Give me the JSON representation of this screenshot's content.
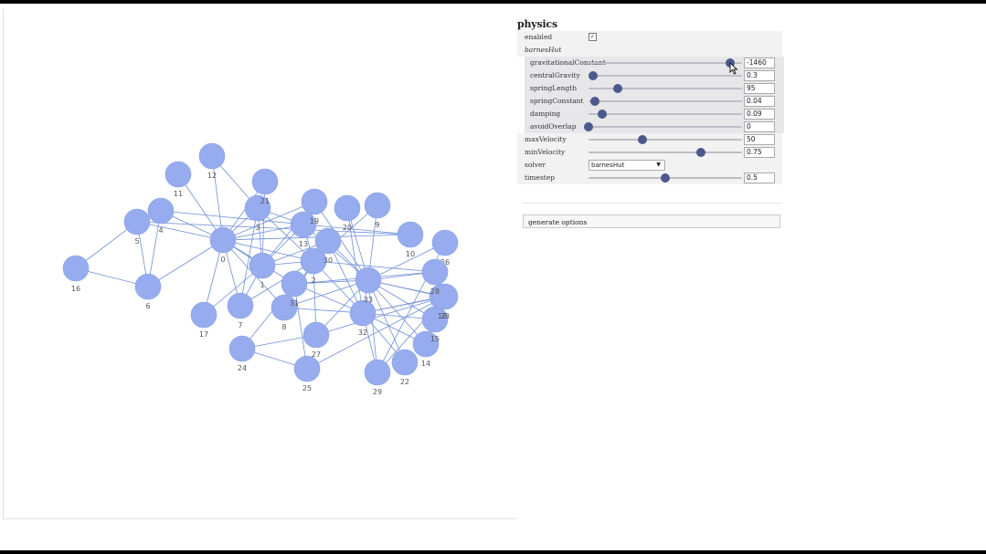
{
  "config": {
    "section_title": "physics",
    "enabled_label": "enabled",
    "enabled_checked": true,
    "solver_group_label": "barnesHut",
    "barnes_hut": [
      {
        "label": "gravitationalConstant",
        "value": "-1460",
        "fraction": 0.92
      },
      {
        "label": "centralGravity",
        "value": "0.3",
        "fraction": 0.03
      },
      {
        "label": "springLength",
        "value": "95",
        "fraction": 0.19
      },
      {
        "label": "springConstant",
        "value": "0.04",
        "fraction": 0.04
      },
      {
        "label": "damping",
        "value": "0.09",
        "fraction": 0.09
      },
      {
        "label": "avoidOverlap",
        "value": "0",
        "fraction": 0.0
      }
    ],
    "max_velocity": {
      "label": "maxVelocity",
      "value": "50",
      "fraction": 0.35
    },
    "min_velocity": {
      "label": "minVelocity",
      "value": "0.75",
      "fraction": 0.73
    },
    "solver": {
      "label": "solver",
      "selected": "barnesHut"
    },
    "timestep": {
      "label": "timestep",
      "value": "0.5",
      "fraction": 0.5
    },
    "generate_button": "generate options"
  },
  "network": {
    "node_color": "#97acee",
    "edge_color": "#6f8fd8",
    "nodes": [
      {
        "id": "0",
        "label": "0"
      },
      {
        "id": "1",
        "label": "1"
      },
      {
        "id": "2",
        "label": "2"
      },
      {
        "id": "3",
        "label": "3"
      },
      {
        "id": "4",
        "label": "4"
      },
      {
        "id": "5",
        "label": "5"
      },
      {
        "id": "6",
        "label": "6"
      },
      {
        "id": "7",
        "label": "7"
      },
      {
        "id": "8",
        "label": "8"
      },
      {
        "id": "9",
        "label": "9"
      },
      {
        "id": "10",
        "label": "10"
      },
      {
        "id": "11",
        "label": "11"
      },
      {
        "id": "12",
        "label": "12"
      },
      {
        "id": "13",
        "label": "13"
      },
      {
        "id": "14",
        "label": "14"
      },
      {
        "id": "15",
        "label": "15"
      },
      {
        "id": "16",
        "label": "16"
      },
      {
        "id": "17",
        "label": "17"
      },
      {
        "id": "18",
        "label": "18"
      },
      {
        "id": "19",
        "label": "19"
      },
      {
        "id": "20",
        "label": "20"
      },
      {
        "id": "21",
        "label": "21"
      },
      {
        "id": "22",
        "label": "22"
      },
      {
        "id": "23",
        "label": "23"
      },
      {
        "id": "24",
        "label": "24"
      },
      {
        "id": "25",
        "label": "25"
      },
      {
        "id": "26",
        "label": "26"
      },
      {
        "id": "27",
        "label": "27"
      },
      {
        "id": "28",
        "label": "28"
      },
      {
        "id": "29",
        "label": "29"
      },
      {
        "id": "30",
        "label": "30"
      },
      {
        "id": "31",
        "label": "31"
      },
      {
        "id": "32",
        "label": "32"
      },
      {
        "id": "33",
        "label": "33"
      }
    ],
    "edges": [
      [
        "0",
        "1"
      ],
      [
        "0",
        "2"
      ],
      [
        "0",
        "3"
      ],
      [
        "0",
        "4"
      ],
      [
        "0",
        "5"
      ],
      [
        "0",
        "6"
      ],
      [
        "0",
        "7"
      ],
      [
        "0",
        "8"
      ],
      [
        "0",
        "10"
      ],
      [
        "0",
        "11"
      ],
      [
        "0",
        "12"
      ],
      [
        "0",
        "13"
      ],
      [
        "0",
        "17"
      ],
      [
        "0",
        "19"
      ],
      [
        "0",
        "21"
      ],
      [
        "0",
        "31"
      ],
      [
        "1",
        "2"
      ],
      [
        "1",
        "3"
      ],
      [
        "1",
        "7"
      ],
      [
        "1",
        "13"
      ],
      [
        "1",
        "17"
      ],
      [
        "1",
        "19"
      ],
      [
        "1",
        "21"
      ],
      [
        "1",
        "30"
      ],
      [
        "2",
        "3"
      ],
      [
        "2",
        "7"
      ],
      [
        "2",
        "8"
      ],
      [
        "2",
        "9"
      ],
      [
        "2",
        "13"
      ],
      [
        "2",
        "27"
      ],
      [
        "2",
        "28"
      ],
      [
        "2",
        "32"
      ],
      [
        "3",
        "7"
      ],
      [
        "3",
        "12"
      ],
      [
        "3",
        "13"
      ],
      [
        "4",
        "6"
      ],
      [
        "4",
        "10"
      ],
      [
        "5",
        "6"
      ],
      [
        "5",
        "10"
      ],
      [
        "5",
        "16"
      ],
      [
        "6",
        "16"
      ],
      [
        "8",
        "30"
      ],
      [
        "8",
        "32"
      ],
      [
        "8",
        "33"
      ],
      [
        "9",
        "33"
      ],
      [
        "13",
        "33"
      ],
      [
        "14",
        "32"
      ],
      [
        "14",
        "33"
      ],
      [
        "15",
        "32"
      ],
      [
        "15",
        "33"
      ],
      [
        "18",
        "32"
      ],
      [
        "18",
        "33"
      ],
      [
        "19",
        "33"
      ],
      [
        "20",
        "32"
      ],
      [
        "20",
        "33"
      ],
      [
        "22",
        "32"
      ],
      [
        "22",
        "33"
      ],
      [
        "23",
        "25"
      ],
      [
        "23",
        "27"
      ],
      [
        "23",
        "29"
      ],
      [
        "23",
        "32"
      ],
      [
        "23",
        "33"
      ],
      [
        "24",
        "25"
      ],
      [
        "24",
        "27"
      ],
      [
        "24",
        "31"
      ],
      [
        "25",
        "31"
      ],
      [
        "26",
        "29"
      ],
      [
        "26",
        "33"
      ],
      [
        "27",
        "33"
      ],
      [
        "28",
        "31"
      ],
      [
        "28",
        "33"
      ],
      [
        "29",
        "32"
      ],
      [
        "29",
        "33"
      ],
      [
        "30",
        "32"
      ],
      [
        "30",
        "33"
      ],
      [
        "31",
        "32"
      ],
      [
        "31",
        "33"
      ],
      [
        "32",
        "33"
      ]
    ]
  }
}
